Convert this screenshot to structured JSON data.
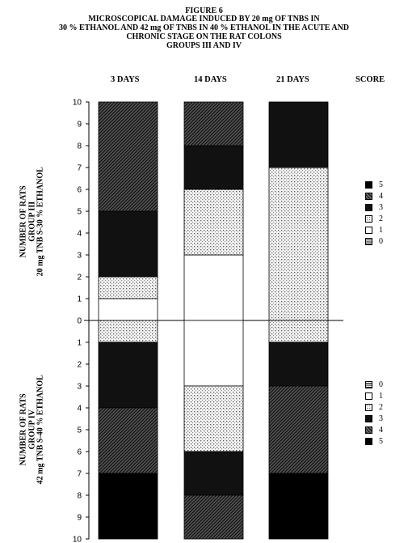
{
  "header": {
    "line1": "FIGURE 6",
    "line2": "MICROSCOPICAL DAMAGE INDUCED BY 20 mg OF TNBS IN",
    "line3": "30 % ETHANOL AND 42 mg OF TNBS IN 40 % ETHANOL IN THE ACUTE AND",
    "line4": "CHRONIC STAGE ON THE RAT COLONS",
    "line5": "GROUPS III AND IV"
  },
  "columns": {
    "c1": "3 DAYS",
    "c2": "14 DAYS",
    "c3": "21 DAYS",
    "score": "SCORE"
  },
  "ylabel_top": {
    "l1": "NUMBER OF RATS",
    "l2": "GROUP III",
    "l3": "20 mg TNB S-30 % ETHANOL"
  },
  "ylabel_bottom": {
    "l1": "NUMBER OF RATS",
    "l2": "GROUP IV",
    "l3": "42 mg TNB S-40 % ETHANOL"
  },
  "legend_top": [
    "5",
    "4",
    "3",
    "2",
    "1",
    "0"
  ],
  "legend_bottom": [
    "0",
    "1",
    "2",
    "3",
    "4",
    "5"
  ],
  "score_colors": {
    "0": "horizontal-lines",
    "1": "#ffffff",
    "2": "dots-light",
    "3": "#111111",
    "4": "diagonal-hatch",
    "5": "#000000"
  },
  "chart_data": {
    "type": "bar",
    "subtype": "stacked-mirrored",
    "categories": [
      "3 DAYS",
      "14 DAYS",
      "21 DAYS"
    ],
    "yticks_top": [
      "10",
      "9",
      "8",
      "7",
      "6",
      "5",
      "4",
      "3",
      "2",
      "1",
      "0"
    ],
    "yticks_bottom": [
      "1",
      "2",
      "3",
      "4",
      "5",
      "6",
      "7",
      "8",
      "9",
      "10"
    ],
    "ylim": [
      0,
      10
    ],
    "group_III": [
      {
        "category": "3 DAYS",
        "segments": [
          {
            "score": "1",
            "count": 1
          },
          {
            "score": "2",
            "count": 1
          },
          {
            "score": "3",
            "count": 3
          },
          {
            "score": "4",
            "count": 5
          }
        ]
      },
      {
        "category": "14 DAYS",
        "segments": [
          {
            "score": "1",
            "count": 3
          },
          {
            "score": "2",
            "count": 3
          },
          {
            "score": "3",
            "count": 2
          },
          {
            "score": "4",
            "count": 2
          }
        ]
      },
      {
        "category": "21 DAYS",
        "segments": [
          {
            "score": "2",
            "count": 7
          },
          {
            "score": "3",
            "count": 3
          }
        ]
      }
    ],
    "group_IV": [
      {
        "category": "3 DAYS",
        "segments": [
          {
            "score": "2",
            "count": 1
          },
          {
            "score": "3",
            "count": 3
          },
          {
            "score": "4",
            "count": 3
          },
          {
            "score": "5",
            "count": 3
          }
        ]
      },
      {
        "category": "14 DAYS",
        "segments": [
          {
            "score": "1",
            "count": 3
          },
          {
            "score": "2",
            "count": 3
          },
          {
            "score": "3",
            "count": 2
          },
          {
            "score": "4",
            "count": 2
          }
        ]
      },
      {
        "category": "21 DAYS",
        "segments": [
          {
            "score": "2",
            "count": 1
          },
          {
            "score": "3",
            "count": 2
          },
          {
            "score": "4",
            "count": 4
          },
          {
            "score": "5",
            "count": 3
          }
        ]
      }
    ]
  }
}
